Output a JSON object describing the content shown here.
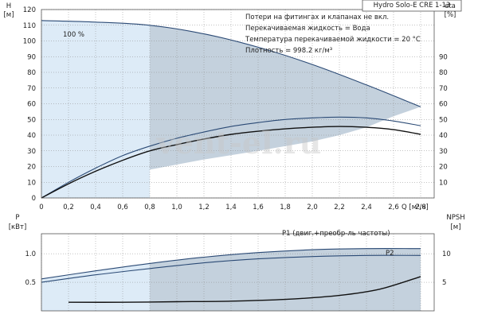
{
  "header": {
    "model": "Hydro Solo-E CRE 1-13"
  },
  "notes": [
    "Потери на фитингах и клапанах не вкл.",
    "Перекачиваемая жидкость = Вода",
    "Температура перекачиваемой жидкости = 20 °C",
    "Плотность = 998.2 кг/м³"
  ],
  "watermark": "vent-el.ru",
  "colors": {
    "curve_dark": "#2b4a75",
    "curve_black": "#111111",
    "envelope_gray": "#c4d1dd",
    "envelope_light": "#ddebf7",
    "grid": "#8a8a8a",
    "frame": "#555555"
  },
  "chart_data": [
    {
      "type": "line",
      "panel": "top",
      "xlabel": "Q [м³/ч]",
      "ylabel_left": [
        "H",
        "[м]"
      ],
      "ylabel_right": [
        "eta",
        "[%]"
      ],
      "xlim": [
        0,
        2.9
      ],
      "ylim_left": [
        0,
        120
      ],
      "ylim_right": [
        0,
        120
      ],
      "x_ticks": [
        0,
        0.2,
        0.4,
        0.6,
        0.8,
        1.0,
        1.2,
        1.4,
        1.6,
        1.8,
        2.0,
        2.2,
        2.4,
        2.6,
        2.8
      ],
      "x_tick_labels": [
        "0",
        "0,2",
        "0,4",
        "0,6",
        "0,8",
        "1,0",
        "1,2",
        "1,4",
        "1,6",
        "1,8",
        "2,0",
        "2,2",
        "2,4",
        "2,6",
        "2,8"
      ],
      "y_ticks_left": [
        0,
        10,
        20,
        30,
        40,
        50,
        60,
        70,
        80,
        90,
        100,
        110,
        120
      ],
      "y_ticks_right": [
        10,
        20,
        30,
        40,
        50,
        60,
        70,
        80,
        90
      ],
      "grid": true,
      "series": [
        {
          "name": "100 %",
          "axis": "left",
          "color": "#2b4a75",
          "x": [
            0,
            0.4,
            0.8,
            1.2,
            1.6,
            2.0,
            2.4,
            2.8
          ],
          "y": [
            113,
            112,
            110,
            104.5,
            96,
            85,
            72,
            58
          ]
        },
        {
          "axis": "right",
          "color": "#2b4a75",
          "x": [
            0,
            0.2,
            0.4,
            0.6,
            0.8,
            1.0,
            1.2,
            1.4,
            1.6,
            1.8,
            2.0,
            2.2,
            2.4,
            2.6,
            2.8
          ],
          "y": [
            0,
            10,
            19,
            27,
            33,
            38,
            42,
            45.5,
            48,
            50,
            51,
            51.5,
            51,
            49,
            46
          ]
        },
        {
          "axis": "right",
          "color": "#111111",
          "x": [
            0,
            0.2,
            0.4,
            0.6,
            0.8,
            1.0,
            1.2,
            1.4,
            1.6,
            1.8,
            2.0,
            2.2,
            2.4,
            2.6,
            2.8
          ],
          "y": [
            0,
            9,
            17,
            24,
            30,
            34,
            37.5,
            40.5,
            42.5,
            44,
            45,
            45.5,
            45,
            43.5,
            40.5
          ]
        }
      ],
      "envelope": {
        "x": [
          0,
          0.4,
          0.8,
          1.2,
          1.6,
          2.0,
          2.4,
          2.8,
          2.8,
          2.6,
          2.4,
          2.2,
          2.0,
          1.6,
          1.2,
          0.8,
          0.6,
          0.4,
          0.2,
          0
        ],
        "y": [
          113,
          112,
          110,
          104.5,
          96,
          85,
          72,
          58,
          58,
          52,
          45,
          40,
          36,
          30,
          24.5,
          18,
          4,
          2,
          1,
          0
        ]
      },
      "light_region": {
        "x": [
          0,
          0.4,
          0.8,
          0.8,
          0.6,
          0.4,
          0.2,
          0
        ],
        "y": [
          113,
          112,
          110,
          0,
          0,
          0,
          0,
          0
        ]
      }
    },
    {
      "type": "line",
      "panel": "bottom",
      "ylabel_left": [
        "P",
        "[кВт]"
      ],
      "ylabel_right": [
        "NPSH",
        "[м]"
      ],
      "xlim": [
        0,
        2.9
      ],
      "ylim_left": [
        0,
        1.35
      ],
      "ylim_right": [
        0,
        13.5
      ],
      "y_ticks_left": [
        0.5,
        1.0
      ],
      "y_tick_labels_left": [
        "0.5",
        "1.0"
      ],
      "y_ticks_right": [
        5,
        10
      ],
      "grid": true,
      "series": [
        {
          "name": "P1 (двиг.+преобр-ль частоты)",
          "axis": "left",
          "color": "#2b4a75",
          "x": [
            0,
            0.4,
            0.8,
            1.2,
            1.6,
            2.0,
            2.4,
            2.8
          ],
          "y": [
            0.56,
            0.7,
            0.83,
            0.94,
            1.02,
            1.07,
            1.09,
            1.09
          ]
        },
        {
          "name": "P2",
          "axis": "left",
          "color": "#2b4a75",
          "x": [
            0,
            0.4,
            0.8,
            1.2,
            1.6,
            2.0,
            2.4,
            2.8
          ],
          "y": [
            0.5,
            0.63,
            0.74,
            0.84,
            0.91,
            0.95,
            0.97,
            0.97
          ]
        },
        {
          "name": "NPSH",
          "axis": "right",
          "color": "#111111",
          "x": [
            0.2,
            0.6,
            1.0,
            1.4,
            1.8,
            2.2,
            2.5,
            2.8
          ],
          "y": [
            1.5,
            1.5,
            1.6,
            1.7,
            2.0,
            2.7,
            3.8,
            6.0
          ]
        }
      ],
      "envelope": {
        "x": [
          0,
          0.2,
          0.4,
          0.6,
          0.8,
          1.0,
          1.2,
          1.6,
          2.0,
          2.4,
          2.8,
          2.8,
          1.0,
          0.8,
          0.6,
          0.4,
          0.2,
          0
        ],
        "y": [
          0.56,
          0.62,
          0.7,
          0.77,
          0.83,
          0.89,
          0.94,
          1.02,
          1.07,
          1.09,
          1.09,
          0,
          0,
          0,
          0,
          0,
          0,
          0
        ]
      }
    }
  ]
}
